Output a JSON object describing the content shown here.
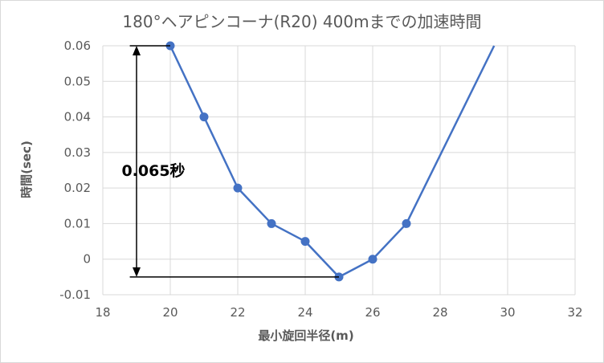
{
  "chart_data": {
    "type": "scatter",
    "title": "180°ヘアピンコーナ(R20) 400mまでの加速時間",
    "xlabel": "最小旋回半径(m)",
    "ylabel": "時間(sec)",
    "xlim": [
      18,
      32
    ],
    "ylim": [
      -0.01,
      0.06
    ],
    "x_ticks": [
      18,
      20,
      22,
      24,
      26,
      28,
      30,
      32
    ],
    "y_ticks": [
      -0.01,
      0,
      0.01,
      0.02,
      0.03,
      0.04,
      0.05,
      0.06
    ],
    "x_tick_labels": [
      "18",
      "20",
      "22",
      "24",
      "26",
      "28",
      "30",
      "32"
    ],
    "y_tick_labels": [
      "-0.01",
      "0",
      "0.01",
      "0.02",
      "0.03",
      "0.04",
      "0.05",
      "0.06"
    ],
    "grid": true,
    "legend": "none",
    "series": [
      {
        "color": "#4472c4",
        "x": [
          20,
          21,
          22,
          23,
          24,
          25,
          26,
          27,
          29.6
        ],
        "y": [
          0.06,
          0.04,
          0.02,
          0.01,
          0.005,
          -0.005,
          0,
          0.01,
          0.06
        ],
        "markers_on": [
          true,
          true,
          true,
          true,
          true,
          true,
          true,
          true,
          false
        ]
      }
    ],
    "annotations": {
      "span_label": "0.065秒",
      "span_x": 19,
      "span_top": 0.06,
      "span_bottom": -0.005,
      "top_line_from_x": 18.8,
      "top_line_to_x": 20,
      "bottom_line_from_x": 18.8,
      "bottom_line_to_x": 25,
      "label_x": 19.5,
      "label_y": 0.025
    }
  }
}
